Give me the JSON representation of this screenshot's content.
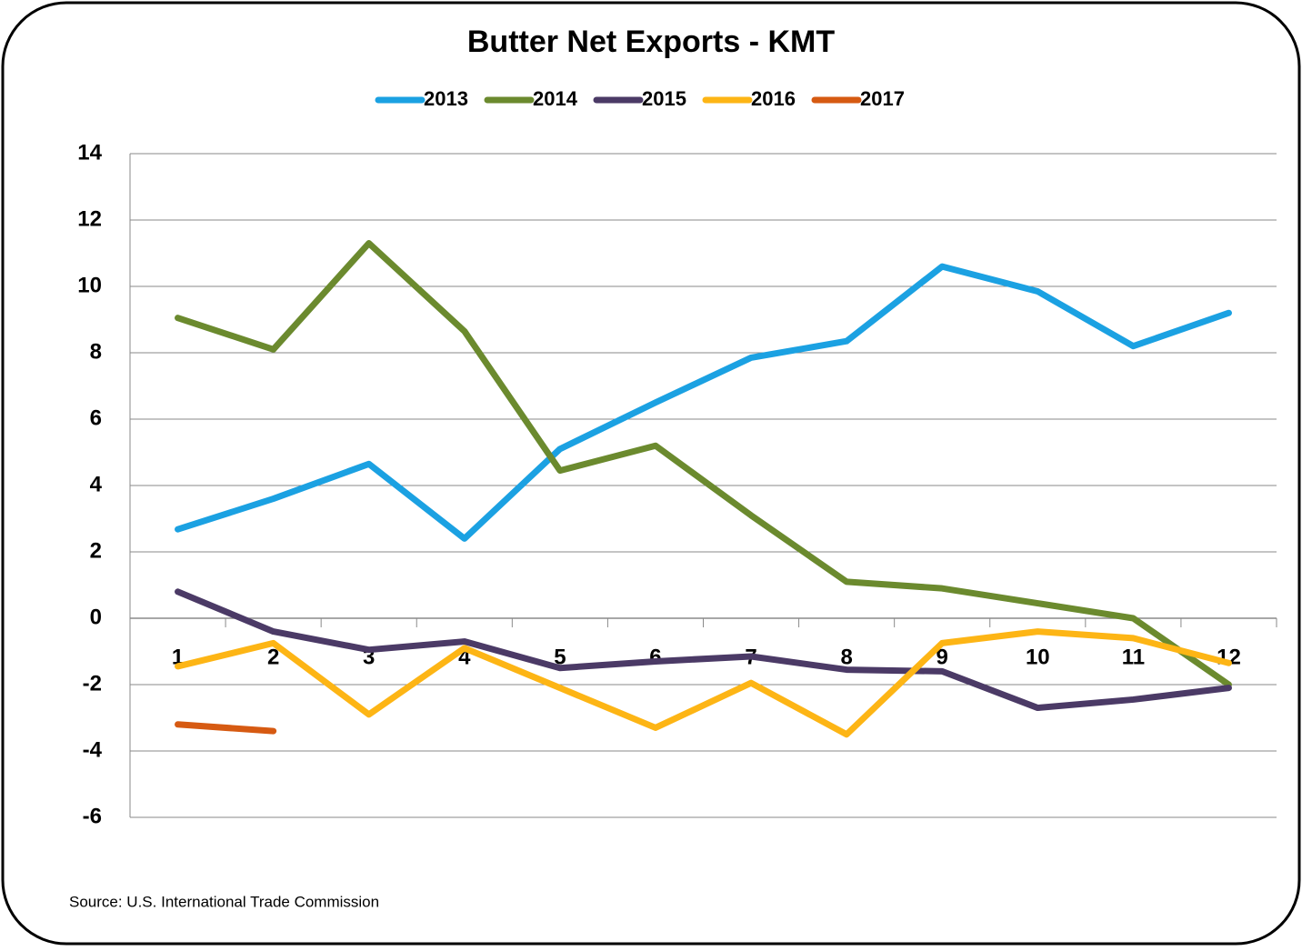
{
  "chart_data": {
    "type": "line",
    "title": "Butter Net Exports - KMT",
    "source": "Source: U.S. International Trade Commission",
    "categories": [
      "1",
      "2",
      "3",
      "4",
      "5",
      "6",
      "7",
      "8",
      "9",
      "10",
      "11",
      "12"
    ],
    "series": [
      {
        "name": "2013",
        "color": "#1ba1e2",
        "values": [
          2.68,
          3.6,
          4.65,
          2.4,
          5.1,
          6.5,
          7.85,
          8.35,
          10.6,
          9.85,
          8.2,
          9.2
        ]
      },
      {
        "name": "2014",
        "color": "#6b8a2e",
        "values": [
          9.05,
          8.1,
          11.3,
          8.65,
          4.45,
          5.2,
          3.1,
          1.1,
          0.9,
          0.45,
          0,
          -2.0
        ]
      },
      {
        "name": "2015",
        "color": "#4b3a66",
        "values": [
          0.8,
          -0.4,
          -0.95,
          -0.7,
          -1.5,
          -1.3,
          -1.15,
          -1.55,
          -1.6,
          -2.7,
          -2.45,
          -2.1
        ]
      },
      {
        "name": "2016",
        "color": "#fdb515",
        "values": [
          -1.45,
          -0.75,
          -2.9,
          -0.9,
          -2.1,
          -3.3,
          -1.95,
          -3.5,
          -0.75,
          -0.4,
          -0.6,
          -1.35
        ]
      },
      {
        "name": "2017",
        "color": "#d65a12",
        "values": [
          -3.2,
          -3.4,
          null,
          null,
          null,
          null,
          null,
          null,
          null,
          null,
          null,
          null
        ]
      }
    ],
    "ylim": [
      -6,
      14
    ],
    "yticks": [
      -6,
      -4,
      -2,
      0,
      2,
      4,
      6,
      8,
      10,
      12,
      14
    ],
    "grid": true,
    "legend": "top"
  }
}
